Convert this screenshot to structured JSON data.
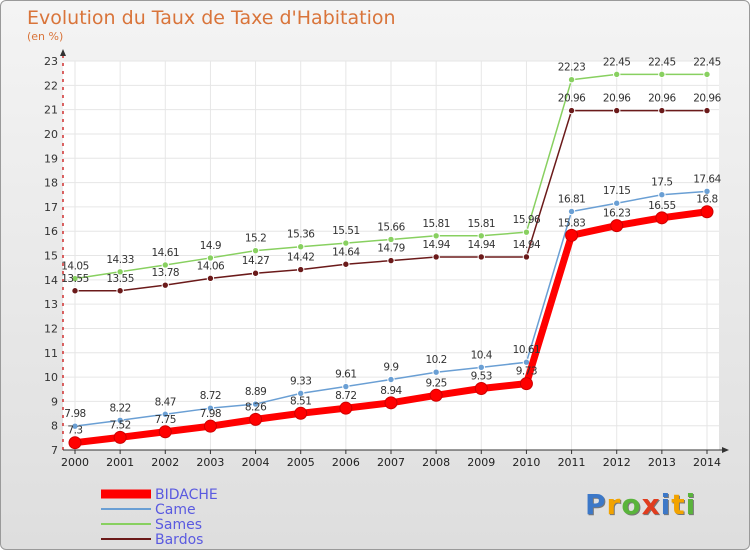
{
  "title": "Evolution du Taux de Taxe d'Habitation",
  "subtitle": "(en %)",
  "brand": [
    "P",
    "r",
    "o",
    "x",
    "i",
    "t",
    "i"
  ],
  "brand_colors": [
    "#3c78c8",
    "#f2a300",
    "#5ab43c",
    "#e03c1e",
    "#3c78c8",
    "#f2a300",
    "#5ab43c"
  ],
  "chart_data": {
    "type": "line",
    "title": "Evolution du Taux de Taxe d'Habitation",
    "ylabel": "(en %)",
    "ylim": [
      7,
      23
    ],
    "x": [
      "2000",
      "2001",
      "2002",
      "2003",
      "2004",
      "2005",
      "2006",
      "2007",
      "2008",
      "2009",
      "2010",
      "2011",
      "2012",
      "2013",
      "2014"
    ],
    "yticks": [
      "7",
      "8",
      "9",
      "10",
      "11",
      "12",
      "13",
      "14",
      "15",
      "16",
      "17",
      "18",
      "19",
      "20",
      "21",
      "22",
      "23"
    ],
    "series": [
      {
        "name": "BIDACHE",
        "color": "#ff0000",
        "values": [
          7.3,
          7.52,
          7.75,
          7.98,
          8.26,
          8.51,
          8.72,
          8.94,
          9.25,
          9.53,
          9.73,
          15.83,
          16.23,
          16.55,
          16.8
        ],
        "labels": [
          "7.3",
          "7.52",
          "7.75",
          "7.98",
          "8.26",
          "8.51",
          "8.72",
          "8.94",
          "9.25",
          "9.53",
          "9.73",
          "15.83",
          "16.23",
          "16.55",
          "16.8"
        ]
      },
      {
        "name": "Came",
        "color": "#6a9fd4",
        "values": [
          7.98,
          8.22,
          8.47,
          8.72,
          8.89,
          9.33,
          9.61,
          9.9,
          10.2,
          10.4,
          10.61,
          16.81,
          17.15,
          17.5,
          17.64
        ],
        "labels": [
          "7.98",
          "8.22",
          "8.47",
          "8.72",
          "8.89",
          "9.33",
          "9.61",
          "9.9",
          "10.2",
          "10.4",
          "10.61",
          "16.81",
          "17.15",
          "17.5",
          "17.64"
        ]
      },
      {
        "name": "Sames",
        "color": "#88d060",
        "values": [
          14.05,
          14.33,
          14.61,
          14.9,
          15.2,
          15.36,
          15.51,
          15.66,
          15.81,
          15.81,
          15.96,
          22.23,
          22.45,
          22.45,
          22.45
        ],
        "labels": [
          "14.05",
          "14.33",
          "14.61",
          "14.9",
          "15.2",
          "15.36",
          "15.51",
          "15.66",
          "15.81",
          "15.81",
          "15.96",
          "22.23",
          "22.45",
          "22.45",
          "22.45"
        ]
      },
      {
        "name": "Bardos",
        "color": "#6b1a1a",
        "values": [
          13.55,
          13.55,
          13.78,
          14.06,
          14.27,
          14.42,
          14.64,
          14.79,
          14.94,
          14.94,
          14.94,
          20.96,
          20.96,
          20.96,
          20.96
        ],
        "labels": [
          "13.55",
          "13.55",
          "13.78",
          "14.06",
          "14.27",
          "14.42",
          "14.64",
          "14.79",
          "14.94",
          "14.94",
          "14.94",
          "20.96",
          "20.96",
          "20.96",
          "20.96"
        ]
      }
    ]
  }
}
